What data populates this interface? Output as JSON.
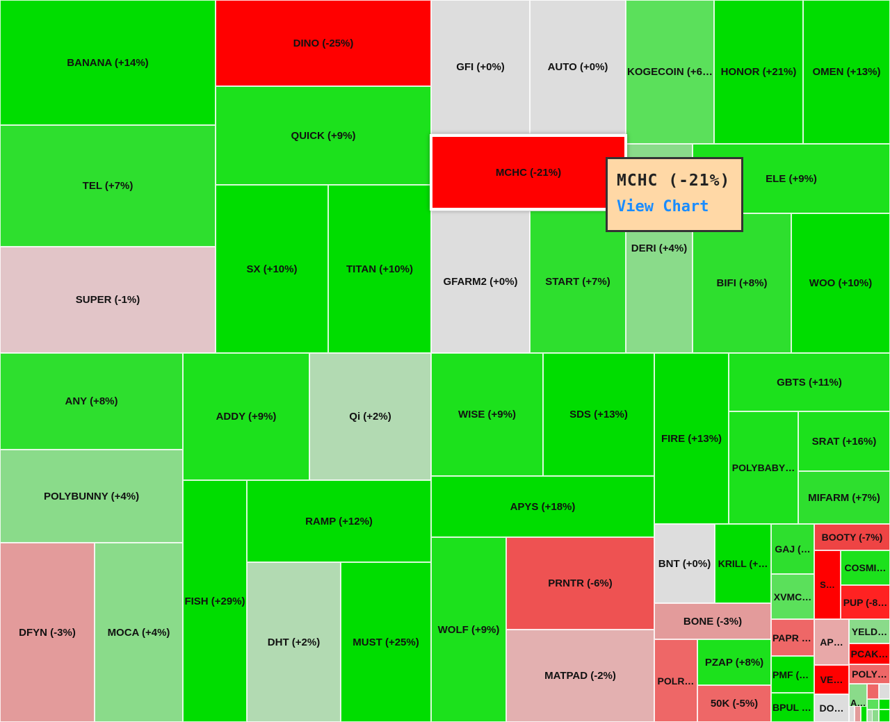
{
  "chart_data": {
    "type": "treemap",
    "color_scale": {
      "positive": "#00dd00",
      "neutral": "#dddddd",
      "negative": "#ff0000"
    },
    "tiles": [
      {
        "symbol": "BANANA",
        "change": 14,
        "label": "BANANA (+14%)"
      },
      {
        "symbol": "TEL",
        "change": 7,
        "label": "TEL (+7%)"
      },
      {
        "symbol": "SUPER",
        "change": -1,
        "label": "SUPER (-1%)"
      },
      {
        "symbol": "DINO",
        "change": -25,
        "label": "DINO (-25%)"
      },
      {
        "symbol": "QUICK",
        "change": 9,
        "label": "QUICK (+9%)"
      },
      {
        "symbol": "SX",
        "change": 10,
        "label": "SX (+10%)"
      },
      {
        "symbol": "TITAN",
        "change": 10,
        "label": "TITAN (+10%)"
      },
      {
        "symbol": "GFI",
        "change": 0,
        "label": "GFI (+0%)"
      },
      {
        "symbol": "AUTO",
        "change": 0,
        "label": "AUTO (+0%)"
      },
      {
        "symbol": "MCHC",
        "change": -21,
        "label": "MCHC (-21%)"
      },
      {
        "symbol": "GFARM2",
        "change": 0,
        "label": "GFARM2 (+0%)"
      },
      {
        "symbol": "START",
        "change": 7,
        "label": "START (+7%)"
      },
      {
        "symbol": "KOGECOIN",
        "change": 6,
        "label": "KOGECOIN (+6%)"
      },
      {
        "symbol": "HONOR",
        "change": 21,
        "label": "HONOR (+21%)"
      },
      {
        "symbol": "OMEN",
        "change": 13,
        "label": "OMEN (+13%)"
      },
      {
        "symbol": "ELE",
        "change": 9,
        "label": "ELE (+9%)"
      },
      {
        "symbol": "DERI",
        "change": 4,
        "label": "DERI (+4%)"
      },
      {
        "symbol": "BIFI",
        "change": 8,
        "label": "BIFI (+8%)"
      },
      {
        "symbol": "WOO",
        "change": 10,
        "label": "WOO (+10%)"
      },
      {
        "symbol": "ANY",
        "change": 8,
        "label": "ANY (+8%)"
      },
      {
        "symbol": "POLYBUNNY",
        "change": 4,
        "label": "POLYBUNNY (+4%)"
      },
      {
        "symbol": "DFYN",
        "change": -3,
        "label": "DFYN (-3%)"
      },
      {
        "symbol": "MOCA",
        "change": 4,
        "label": "MOCA (+4%)"
      },
      {
        "symbol": "ADDY",
        "change": 9,
        "label": "ADDY (+9%)"
      },
      {
        "symbol": "Qi",
        "change": 2,
        "label": "Qi (+2%)"
      },
      {
        "symbol": "FISH",
        "change": 29,
        "label": "FISH (+29%)"
      },
      {
        "symbol": "RAMP",
        "change": 12,
        "label": "RAMP (+12%)"
      },
      {
        "symbol": "DHT",
        "change": 2,
        "label": "DHT (+2%)"
      },
      {
        "symbol": "MUST",
        "change": 25,
        "label": "MUST (+25%)"
      },
      {
        "symbol": "WISE",
        "change": 9,
        "label": "WISE (+9%)"
      },
      {
        "symbol": "SDS",
        "change": 13,
        "label": "SDS (+13%)"
      },
      {
        "symbol": "APYS",
        "change": 18,
        "label": "APYS (+18%)"
      },
      {
        "symbol": "WOLF",
        "change": 9,
        "label": "WOLF (+9%)"
      },
      {
        "symbol": "PRNTR",
        "change": -6,
        "label": "PRNTR (-6%)"
      },
      {
        "symbol": "MATPAD",
        "change": -2,
        "label": "MATPAD (-2%)"
      },
      {
        "symbol": "FIRE",
        "change": 13,
        "label": "FIRE (+13%)"
      },
      {
        "symbol": "GBTS",
        "change": 11,
        "label": "GBTS (+11%)"
      },
      {
        "symbol": "POLYBABY",
        "change": null,
        "label": "POLYBABY…"
      },
      {
        "symbol": "SRAT",
        "change": 16,
        "label": "SRAT (+16%)"
      },
      {
        "symbol": "MIFARM",
        "change": 7,
        "label": "MIFARM (+7%)"
      },
      {
        "symbol": "BNT",
        "change": 0,
        "label": "BNT (+0%)"
      },
      {
        "symbol": "KRILL",
        "change": null,
        "label": "KRILL (+…"
      },
      {
        "symbol": "BONE",
        "change": -3,
        "label": "BONE (-3%)"
      },
      {
        "symbol": "POLR",
        "change": null,
        "label": "POLR…"
      },
      {
        "symbol": "PZAP",
        "change": 8,
        "label": "PZAP (+8%)"
      },
      {
        "symbol": "50K",
        "change": -5,
        "label": "50K (-5%)"
      },
      {
        "symbol": "GAJ",
        "change": null,
        "label": "GAJ (…"
      },
      {
        "symbol": "XVMC",
        "change": null,
        "label": "XVMC…"
      },
      {
        "symbol": "PAPR",
        "change": null,
        "label": "PAPR (…"
      },
      {
        "symbol": "PMF",
        "change": null,
        "label": "PMF (+…"
      },
      {
        "symbol": "BPUL",
        "change": null,
        "label": "BPUL (…"
      },
      {
        "symbol": "BOOTY",
        "change": -7,
        "label": "BOOTY (-7%)"
      },
      {
        "symbol": "S…",
        "change": null,
        "label": "S…"
      },
      {
        "symbol": "COSMI",
        "change": null,
        "label": "COSMI…"
      },
      {
        "symbol": "PUP",
        "change": null,
        "label": "PUP (-8…"
      },
      {
        "symbol": "AP…",
        "change": null,
        "label": "AP…"
      },
      {
        "symbol": "YELD",
        "change": null,
        "label": "YELD…"
      },
      {
        "symbol": "PCAK",
        "change": null,
        "label": "PCAK…"
      },
      {
        "symbol": "VE…",
        "change": null,
        "label": "VE…"
      },
      {
        "symbol": "POLY",
        "change": null,
        "label": "POLY…"
      },
      {
        "symbol": "DO…",
        "change": null,
        "label": "DO…"
      },
      {
        "symbol": "A…",
        "change": null,
        "label": "A…"
      },
      {
        "symbol": "t1",
        "change": null,
        "label": ""
      },
      {
        "symbol": "t2",
        "change": null,
        "label": ""
      },
      {
        "symbol": "t3",
        "change": null,
        "label": ""
      },
      {
        "symbol": "t4",
        "change": null,
        "label": ""
      },
      {
        "symbol": "t5",
        "change": null,
        "label": ""
      },
      {
        "symbol": "t6",
        "change": null,
        "label": ""
      },
      {
        "symbol": "t7",
        "change": null,
        "label": ""
      },
      {
        "symbol": "t8",
        "change": null,
        "label": ""
      },
      {
        "symbol": "t9",
        "change": null,
        "label": ""
      },
      {
        "symbol": "t10",
        "change": null,
        "label": ""
      }
    ]
  },
  "tooltip": {
    "title": "MCHC (-21%)",
    "link_label": "View Chart"
  }
}
